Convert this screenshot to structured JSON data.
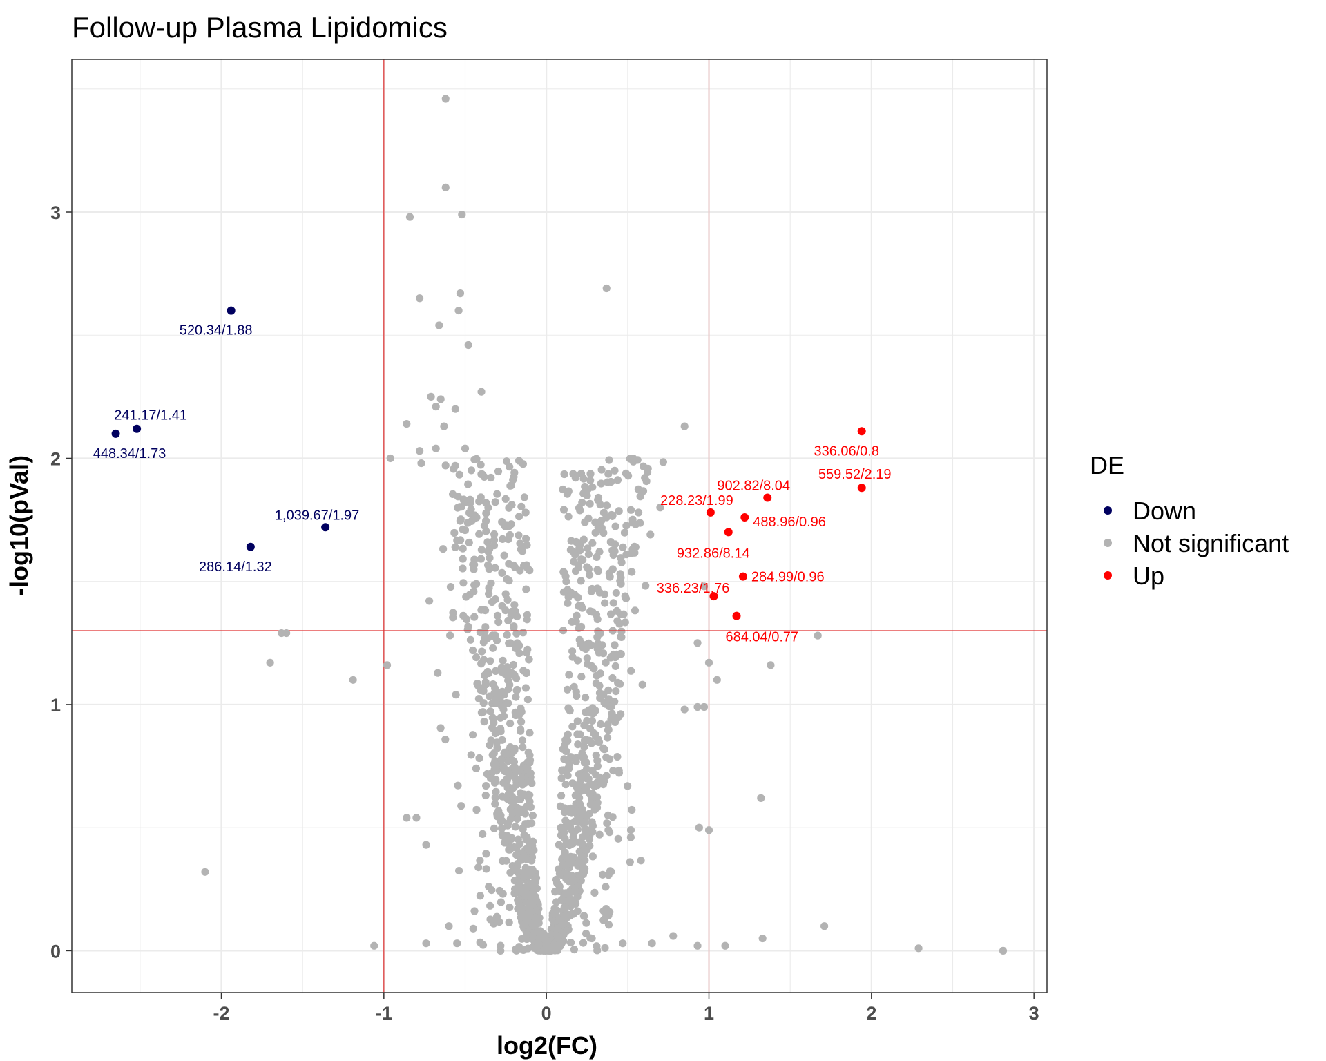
{
  "chart_data": {
    "type": "scatter",
    "title": "Follow-up Plasma Lipidomics",
    "xlabel": "log2(FC)",
    "ylabel": "-log10(pVal)",
    "xlim": [
      -2.92,
      3.08
    ],
    "ylim": [
      -0.17,
      3.62
    ],
    "x_ticks": [
      -2,
      -1,
      0,
      1,
      2,
      3
    ],
    "y_ticks": [
      0,
      1,
      2,
      3
    ],
    "x_tick_labels": [
      "-2",
      "-1",
      "0",
      "1",
      "2",
      "3"
    ],
    "y_tick_labels": [
      "0",
      "1",
      "2",
      "3"
    ],
    "grid": true,
    "thresholds": {
      "log2fc": [
        -1,
        1
      ],
      "neg_log10_p": 1.3
    },
    "colors": {
      "Down": "#00005f",
      "Not significant": "#b3b3b3",
      "Up": "#ff0000",
      "threshold": "#e03030"
    },
    "legend": {
      "title": "DE",
      "entries": [
        "Down",
        "Not significant",
        "Up"
      ],
      "position": "right"
    },
    "series": [
      {
        "name": "Down",
        "points": [
          {
            "x": -1.94,
            "y": 2.6,
            "label": "520.34/1.88"
          },
          {
            "x": -2.52,
            "y": 2.12,
            "label": "241.17/1.41"
          },
          {
            "x": -2.65,
            "y": 2.1,
            "label": "448.34/1.73"
          },
          {
            "x": -1.36,
            "y": 1.72,
            "label": "1,039.67/1.97"
          },
          {
            "x": -1.82,
            "y": 1.64,
            "label": "286.14/1.32"
          }
        ]
      },
      {
        "name": "Up",
        "points": [
          {
            "x": 1.94,
            "y": 2.11,
            "label": "336.06/0.8"
          },
          {
            "x": 1.94,
            "y": 1.88,
            "label": "559.52/2.19"
          },
          {
            "x": 1.36,
            "y": 1.84,
            "label": "902.82/8.04"
          },
          {
            "x": 1.01,
            "y": 1.78,
            "label": "228.23/1.99"
          },
          {
            "x": 1.22,
            "y": 1.76,
            "label": "488.96/0.96"
          },
          {
            "x": 1.12,
            "y": 1.7,
            "label": "932.86/8.14"
          },
          {
            "x": 1.21,
            "y": 1.52,
            "label": "284.99/0.96"
          },
          {
            "x": 1.03,
            "y": 1.44,
            "label": "336.23/1.76"
          },
          {
            "x": 1.17,
            "y": 1.36,
            "label": "684.04/0.77"
          }
        ]
      },
      {
        "name": "Not significant",
        "points": [
          {
            "x": -0.62,
            "y": 3.46
          },
          {
            "x": -0.62,
            "y": 3.1
          },
          {
            "x": -0.84,
            "y": 2.98
          },
          {
            "x": -0.52,
            "y": 2.99
          },
          {
            "x": 0.37,
            "y": 2.69
          },
          {
            "x": -0.53,
            "y": 2.67
          },
          {
            "x": -0.78,
            "y": 2.65
          },
          {
            "x": -0.54,
            "y": 2.6
          },
          {
            "x": -0.66,
            "y": 2.54
          },
          {
            "x": -0.48,
            "y": 2.46
          },
          {
            "x": -0.4,
            "y": 2.27
          },
          {
            "x": -0.71,
            "y": 2.25
          },
          {
            "x": -0.65,
            "y": 2.24
          },
          {
            "x": -0.68,
            "y": 2.21
          },
          {
            "x": -0.56,
            "y": 2.2
          },
          {
            "x": 0.85,
            "y": 2.13
          },
          {
            "x": -0.86,
            "y": 2.14
          },
          {
            "x": -0.63,
            "y": 2.13
          },
          {
            "x": -0.96,
            "y": 2.0
          },
          {
            "x": -0.78,
            "y": 2.03
          },
          {
            "x": -0.68,
            "y": 2.04
          },
          {
            "x": -0.5,
            "y": 2.04
          },
          {
            "x": -0.77,
            "y": 1.98
          },
          {
            "x": 0.42,
            "y": 1.95
          },
          {
            "x": 0.27,
            "y": 1.91
          },
          {
            "x": 0.32,
            "y": 1.84
          },
          {
            "x": 0.52,
            "y": 1.79
          },
          {
            "x": 0.7,
            "y": 1.8
          },
          {
            "x": 0.4,
            "y": 1.77
          },
          {
            "x": 0.37,
            "y": 1.76
          },
          {
            "x": 0.3,
            "y": 1.74
          },
          {
            "x": 0.64,
            "y": 1.69
          },
          {
            "x": 0.23,
            "y": 1.67
          },
          {
            "x": 0.53,
            "y": 1.63
          },
          {
            "x": 0.26,
            "y": 1.61
          },
          {
            "x": 0.97,
            "y": 1.48
          },
          {
            "x": -1.6,
            "y": 1.29
          },
          {
            "x": -1.63,
            "y": 1.29
          },
          {
            "x": -1.7,
            "y": 1.17
          },
          {
            "x": -0.98,
            "y": 1.16
          },
          {
            "x": -1.19,
            "y": 1.1
          },
          {
            "x": 0.93,
            "y": 1.25
          },
          {
            "x": 1.67,
            "y": 1.28
          },
          {
            "x": 1.38,
            "y": 1.16
          },
          {
            "x": 1.0,
            "y": 1.17
          },
          {
            "x": 1.05,
            "y": 1.1
          },
          {
            "x": 0.93,
            "y": 0.99
          },
          {
            "x": 0.97,
            "y": 0.99
          },
          {
            "x": 0.85,
            "y": 0.98
          },
          {
            "x": 1.32,
            "y": 0.62
          },
          {
            "x": -0.86,
            "y": 0.54
          },
          {
            "x": -0.8,
            "y": 0.54
          },
          {
            "x": 0.94,
            "y": 0.5
          },
          {
            "x": 1.0,
            "y": 0.49
          },
          {
            "x": -0.74,
            "y": 0.43
          },
          {
            "x": -2.1,
            "y": 0.32
          },
          {
            "x": 1.71,
            "y": 0.1
          },
          {
            "x": -1.06,
            "y": 0.02
          },
          {
            "x": 0.93,
            "y": 0.02
          },
          {
            "x": 1.1,
            "y": 0.02
          },
          {
            "x": 1.33,
            "y": 0.05
          },
          {
            "x": 2.29,
            "y": 0.01
          },
          {
            "x": 2.81,
            "y": 0.0
          },
          {
            "x": -0.74,
            "y": 0.03
          },
          {
            "x": -0.6,
            "y": 0.1
          },
          {
            "x": -0.55,
            "y": 0.03
          },
          {
            "x": -0.45,
            "y": 0.09
          },
          {
            "x": 0.28,
            "y": 0.05
          },
          {
            "x": 0.47,
            "y": 0.03
          },
          {
            "x": 0.65,
            "y": 0.03
          },
          {
            "x": 0.78,
            "y": 0.06
          }
        ]
      }
    ],
    "cloud": {
      "series": "Not significant",
      "count": 1400,
      "shape": "V",
      "spread_fc": 0.26,
      "max_y": 2.0,
      "seed": 11
    }
  }
}
